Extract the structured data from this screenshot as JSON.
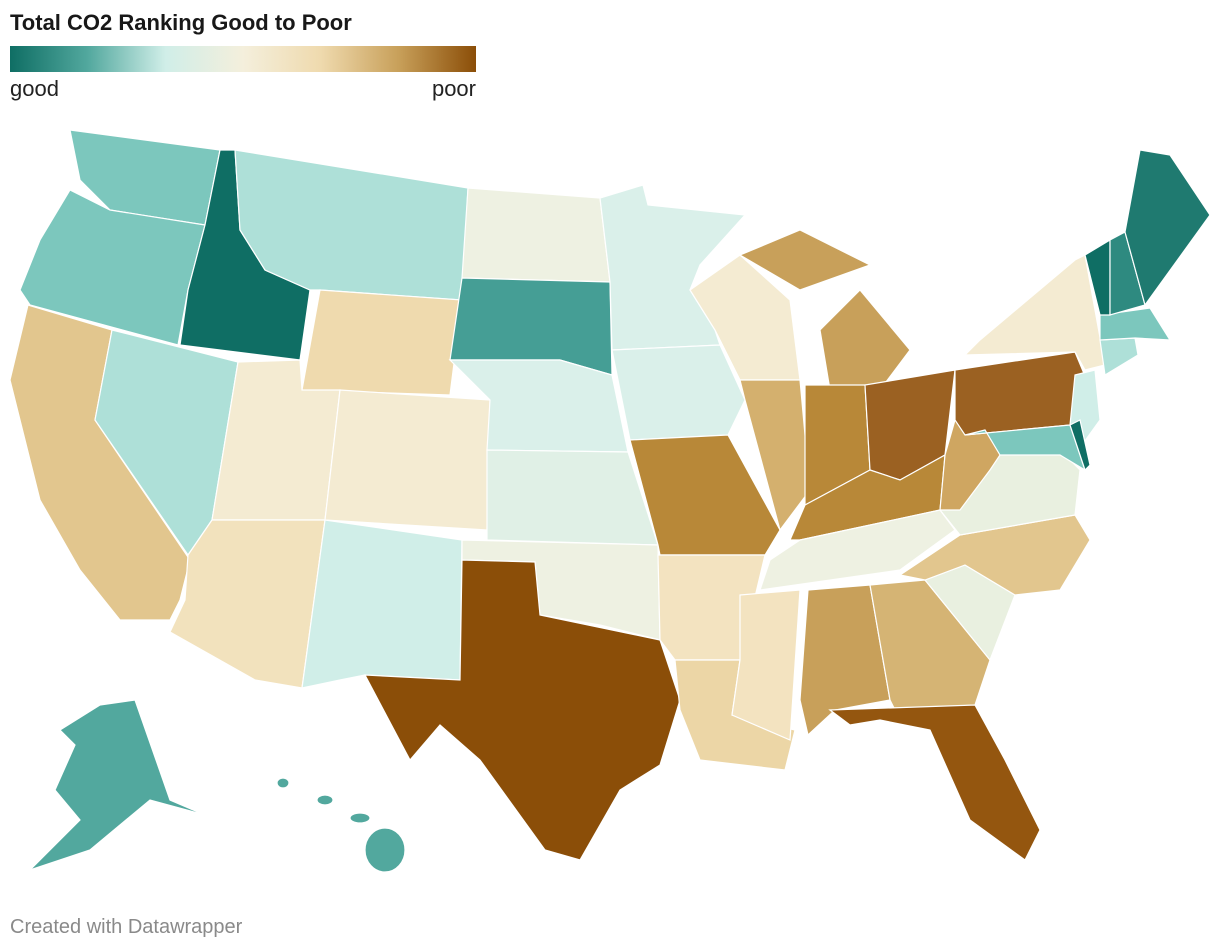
{
  "header": {
    "title": "Total CO2 Ranking Good to Poor"
  },
  "legend": {
    "low_label": "good",
    "high_label": "poor"
  },
  "footer": {
    "credit": "Created with Datawrapper"
  }
}
